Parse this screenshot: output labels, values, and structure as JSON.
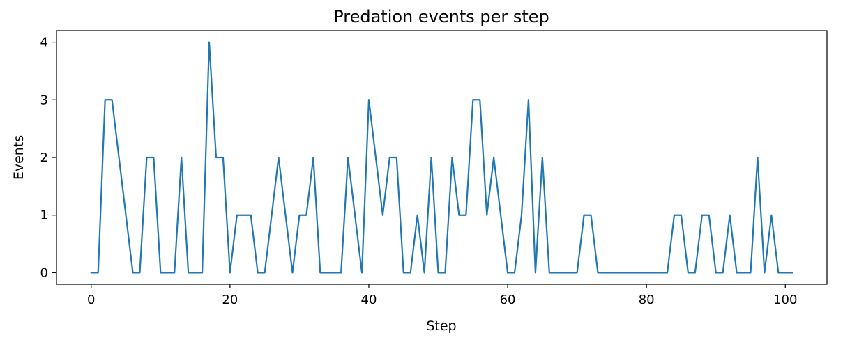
{
  "chart_data": {
    "type": "line",
    "title": "Predation events per step",
    "xlabel": "Step",
    "ylabel": "Events",
    "xlim": [
      -5,
      106
    ],
    "ylim": [
      -0.2,
      4.2
    ],
    "xticks": [
      0,
      20,
      40,
      60,
      80,
      100
    ],
    "yticks": [
      0,
      1,
      2,
      3,
      4
    ],
    "grid": false,
    "series": [
      {
        "color": "#1f77b4",
        "x": [
          0,
          1,
          2,
          3,
          4,
          5,
          6,
          7,
          8,
          9,
          10,
          11,
          12,
          13,
          14,
          15,
          16,
          17,
          18,
          19,
          20,
          21,
          22,
          23,
          24,
          25,
          26,
          27,
          28,
          29,
          30,
          31,
          32,
          33,
          34,
          35,
          36,
          37,
          38,
          39,
          40,
          41,
          42,
          43,
          44,
          45,
          46,
          47,
          48,
          49,
          50,
          51,
          52,
          53,
          54,
          55,
          56,
          57,
          58,
          59,
          60,
          61,
          62,
          63,
          64,
          65,
          66,
          67,
          68,
          69,
          70,
          71,
          72,
          73,
          74,
          75,
          76,
          77,
          78,
          79,
          80,
          81,
          82,
          83,
          84,
          85,
          86,
          87,
          88,
          89,
          90,
          91,
          92,
          93,
          94,
          95,
          96,
          97,
          98,
          99,
          100,
          101
        ],
        "y": [
          0,
          0,
          3,
          3,
          2,
          1,
          0,
          0,
          2,
          2,
          0,
          0,
          0,
          2,
          0,
          0,
          0,
          4,
          2,
          2,
          0,
          1,
          1,
          1,
          0,
          0,
          1,
          2,
          1,
          0,
          1,
          1,
          2,
          0,
          0,
          0,
          0,
          2,
          1,
          0,
          3,
          2,
          1,
          2,
          2,
          0,
          0,
          1,
          0,
          2,
          0,
          0,
          2,
          1,
          1,
          3,
          3,
          1,
          2,
          1,
          0,
          0,
          1,
          3,
          0,
          2,
          0,
          0,
          0,
          0,
          0,
          1,
          1,
          0,
          0,
          0,
          0,
          0,
          0,
          0,
          0,
          0,
          0,
          0,
          1,
          1,
          0,
          0,
          1,
          1,
          0,
          0,
          1,
          0,
          0,
          0,
          2,
          0,
          1,
          0,
          0,
          0
        ]
      }
    ]
  }
}
